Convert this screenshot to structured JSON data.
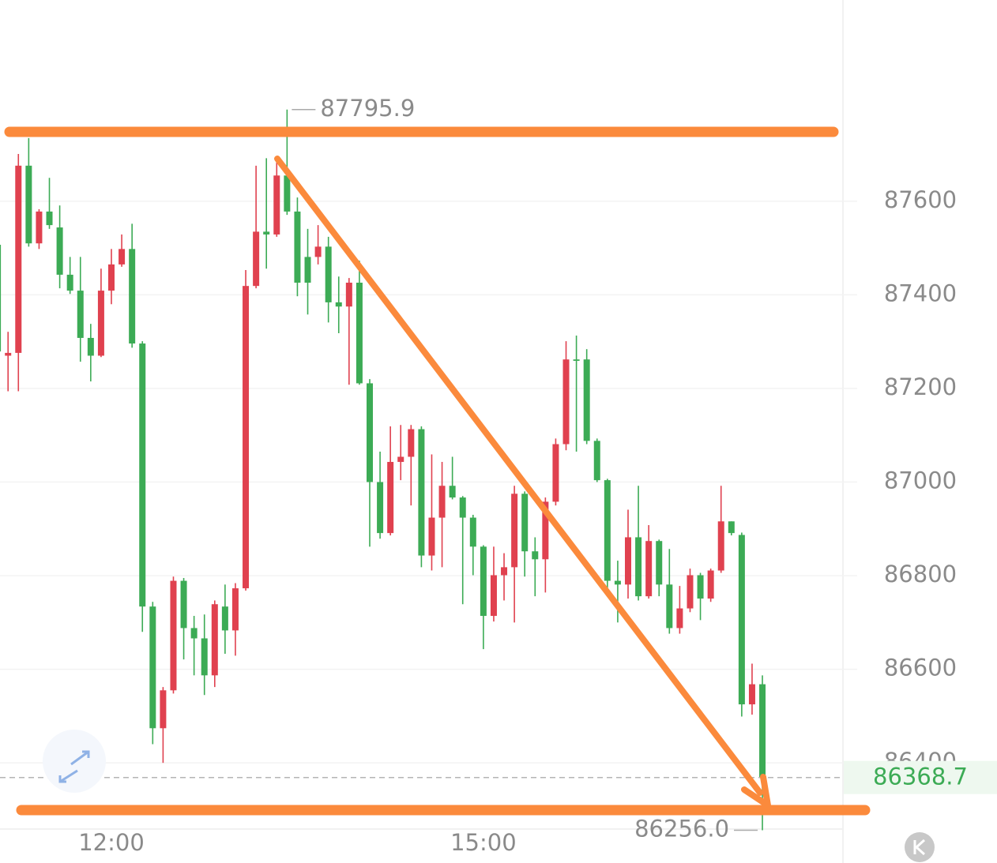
{
  "chart_data": {
    "type": "candlestick",
    "categories": [
      null,
      null,
      null,
      null,
      null,
      null,
      null,
      null,
      null,
      null,
      null,
      "12:00",
      null,
      null,
      null,
      null,
      null,
      null,
      null,
      null,
      null,
      null,
      null,
      null,
      null,
      null,
      null,
      null,
      null,
      null,
      null,
      null,
      null,
      null,
      null,
      null,
      null,
      null,
      null,
      null,
      null,
      null,
      null,
      null,
      null,
      null,
      null,
      "15:00",
      null,
      null,
      null,
      null,
      null,
      null,
      null,
      null,
      null,
      null,
      null,
      null,
      null,
      null,
      null,
      null,
      null,
      null,
      null,
      null,
      null,
      null,
      null,
      null,
      null,
      null,
      null
    ],
    "open": [
      87507,
      87270,
      87276,
      87676,
      87510,
      87578,
      87544,
      87443,
      87409,
      87308,
      87270,
      87409,
      87465,
      87498,
      87296,
      86734,
      86474,
      86555,
      86789,
      86688,
      86666,
      86587,
      86734,
      86683,
      86773,
      87419,
      87535,
      87529,
      87655,
      87578,
      87481,
      87481,
      87503,
      87384,
      87375,
      87426,
      87211,
      87000,
      86891,
      87043,
      87054,
      87113,
      86843,
      86924,
      86992,
      86967,
      86924,
      86862,
      86714,
      86801,
      86818,
      86975,
      86852,
      86835,
      86958,
      87081,
      87262,
      87262,
      87088,
      87004,
      86789,
      86781,
      86882,
      86756,
      86874,
      86781,
      86688,
      86730,
      86801,
      86751,
      86811,
      86916,
      86887,
      86525,
      86568
    ],
    "high": [
      87524,
      87321,
      87701,
      87735,
      87583,
      87650,
      87591,
      87481,
      87481,
      87338,
      87456,
      87498,
      87529,
      87552,
      87301,
      86744,
      86562,
      86798,
      86795,
      86714,
      86717,
      86747,
      86781,
      86784,
      87453,
      87676,
      87692,
      87692,
      87795.9,
      87608,
      87541,
      87549,
      87524,
      87439,
      87436,
      87473,
      87220,
      87065,
      87119,
      87122,
      87122,
      87119,
      87059,
      87043,
      87054,
      86970,
      86930,
      86865,
      86862,
      86848,
      86992,
      86980,
      86882,
      86967,
      87093,
      87301,
      87313,
      87284,
      87093,
      87007,
      86832,
      86941,
      86992,
      86908,
      86877,
      86857,
      86778,
      86815,
      86806,
      86815,
      86992,
      86916,
      86892,
      86612,
      86587
    ],
    "low": [
      87270,
      87194,
      87194,
      87503,
      87498,
      87541,
      87414,
      87402,
      87257,
      87215,
      87267,
      87380,
      87460,
      87287,
      86680,
      86440,
      86400,
      86548,
      86621,
      86587,
      86545,
      86562,
      86633,
      86629,
      86768,
      87414,
      87456,
      87524,
      87571,
      87397,
      87358,
      87465,
      87341,
      87318,
      87208,
      87208,
      86862,
      86879,
      86886,
      87004,
      86950,
      86818,
      86811,
      86818,
      86963,
      86739,
      86801,
      86643,
      86702,
      86747,
      86700,
      86798,
      86756,
      86764,
      86950,
      87068,
      87065,
      87081,
      87000,
      86773,
      86700,
      86751,
      86747,
      86751,
      86756,
      86676,
      86676,
      86722,
      86705,
      86744,
      86806,
      86886,
      86499,
      86503,
      86256.0
    ],
    "close": [
      87279,
      87276,
      87676,
      87510,
      87578,
      87549,
      87443,
      87409,
      87308,
      87270,
      87409,
      87465,
      87498,
      87296,
      86734,
      86474,
      86555,
      86789,
      86688,
      86666,
      86587,
      86739,
      86683,
      86773,
      87419,
      87535,
      87529,
      87655,
      87578,
      87426,
      87426,
      87503,
      87384,
      87375,
      87426,
      87211,
      87000,
      86891,
      87043,
      87054,
      87113,
      86843,
      86924,
      86992,
      86967,
      86924,
      86862,
      86714,
      86801,
      86818,
      86975,
      86852,
      86835,
      86958,
      87081,
      87262,
      87259,
      87088,
      87004,
      86789,
      86781,
      86882,
      86756,
      86874,
      86781,
      86688,
      86730,
      86801,
      86751,
      86811,
      86916,
      86891,
      86525,
      86568,
      86368.7
    ],
    "up_color": "#e0414f",
    "down_color": "#3cab55",
    "ylim": [
      86240,
      88030
    ],
    "yticks": [
      86400,
      86600,
      86800,
      87000,
      87200,
      87400,
      87600
    ],
    "grid": true,
    "high_label": {
      "value": 87795.9,
      "label": "87795.9"
    },
    "low_label": {
      "value": 86256.0,
      "label": "86256.0"
    },
    "last_price": 86368.7
  }
}
